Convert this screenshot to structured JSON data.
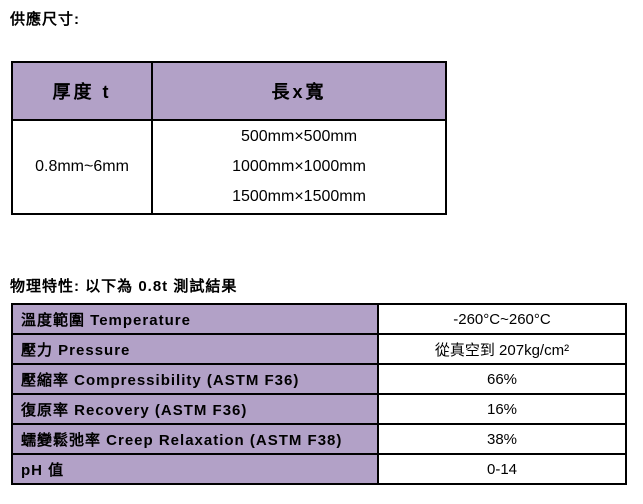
{
  "headings": {
    "supply": "供應尺寸:",
    "physical": "物理特性: 以下為 0.8t 測試結果"
  },
  "supply_table": {
    "headers": [
      "厚度 t",
      "長x寬"
    ],
    "thickness": "0.8mm~6mm",
    "sizes": [
      "500mm×500mm",
      "1000mm×1000mm",
      "1500mm×1500mm"
    ]
  },
  "properties_table": {
    "rows": [
      {
        "label": "溫度範圍 Temperature",
        "value": "-260°C~260°C"
      },
      {
        "label": "壓力 Pressure",
        "value": "從真空到 207kg/cm²"
      },
      {
        "label": "壓縮率 Compressibility (ASTM F36)",
        "value": "66%"
      },
      {
        "label": "復原率 Recovery (ASTM F36)",
        "value": "16%"
      },
      {
        "label": "蠕變鬆弛率 Creep Relaxation (ASTM F38)",
        "value": "38%"
      },
      {
        "label": "pH 值",
        "value": "0-14"
      }
    ]
  },
  "colors": {
    "header_fill": "#B2A1C7",
    "border": "#000000",
    "background": "#FFFFFF",
    "text": "#000000"
  }
}
